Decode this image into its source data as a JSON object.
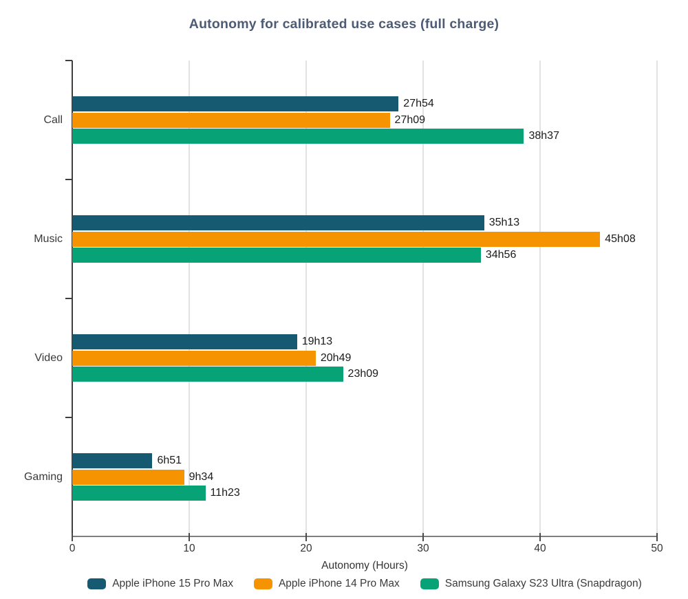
{
  "chart_data": {
    "type": "bar",
    "orientation": "horizontal",
    "title": "Autonomy for calibrated use cases (full charge)",
    "xlabel": "Autonomy (Hours)",
    "xlim": [
      0,
      50
    ],
    "xticks": [
      0,
      10,
      20,
      30,
      40,
      50
    ],
    "grid": "vertical-only",
    "legend_position": "bottom",
    "categories": [
      "Call",
      "Music",
      "Video",
      "Gaming"
    ],
    "series": [
      {
        "name": "Apple iPhone 15 Pro Max",
        "color": "#165A72",
        "values_hours": [
          27.9,
          35.217,
          19.217,
          6.85
        ],
        "labels": [
          "27h54",
          "35h13",
          "19h13",
          "6h51"
        ]
      },
      {
        "name": "Apple iPhone 14 Pro Max",
        "color": "#F59300",
        "values_hours": [
          27.15,
          45.133,
          20.817,
          9.567
        ],
        "labels": [
          "27h09",
          "45h08",
          "20h49",
          "9h34"
        ]
      },
      {
        "name": "Samsung Galaxy S23 Ultra (Snapdragon)",
        "color": "#07A275",
        "values_hours": [
          38.617,
          34.933,
          23.15,
          11.383
        ],
        "labels": [
          "38h37",
          "34h56",
          "23h09",
          "11h23"
        ]
      }
    ],
    "colors": {
      "title": "#4e5b75",
      "axis_line": "#7e7e7e",
      "y_axis_line": "#3d3d3d",
      "gridline": "#e2e2e2",
      "tick_text": "#333333",
      "category_text": "#3a3a3a",
      "value_text": "#1a1a1a",
      "background": "#ffffff"
    }
  }
}
